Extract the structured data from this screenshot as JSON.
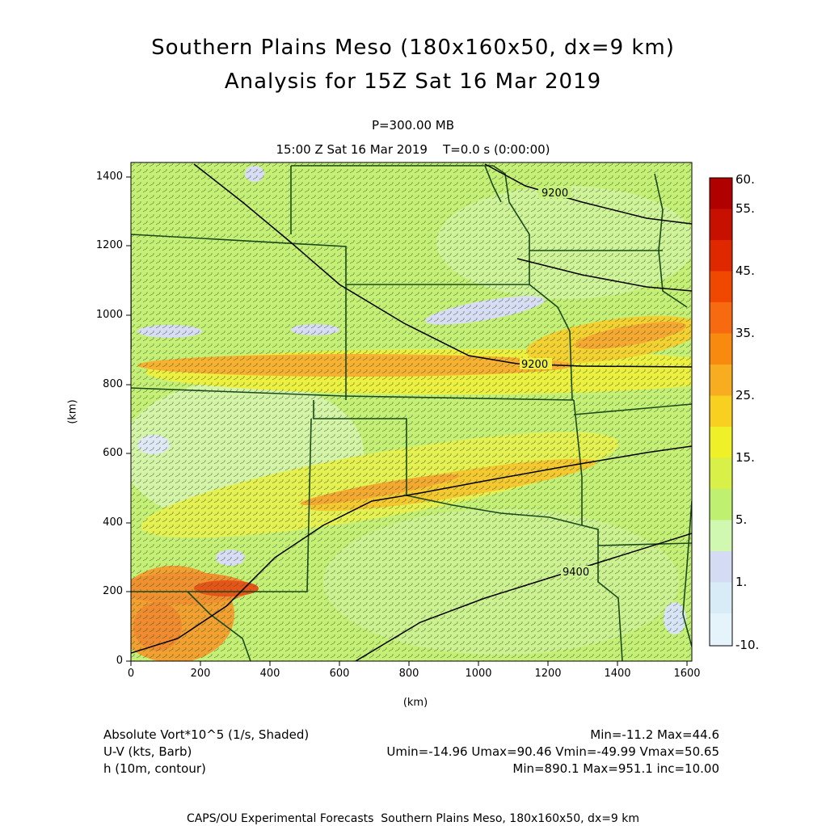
{
  "header": {
    "title_line1": "Southern Plains Meso (180x160x50, dx=9 km)",
    "title_line2": "Analysis for 15Z Sat 16 Mar 2019",
    "level": "P=300.00 MB",
    "time": "15:00 Z Sat 16 Mar 2019    T=0.0 s (0:00:00)"
  },
  "axes": {
    "x_label": "(km)",
    "y_label": "(km)",
    "x_ticks": [
      "0",
      "200",
      "400",
      "600",
      "800",
      "1000",
      "1200",
      "1400",
      "1600"
    ],
    "y_ticks": [
      "0",
      "200",
      "400",
      "600",
      "800",
      "1000",
      "1200",
      "1400"
    ]
  },
  "colorbar": {
    "labels": [
      "60.",
      "55.",
      "45.",
      "35.",
      "25.",
      "15.",
      "5.",
      "1.",
      "-10."
    ],
    "colors": [
      "#b00000",
      "#c81000",
      "#e02800",
      "#f04800",
      "#f86a10",
      "#f88a10",
      "#f8ac20",
      "#f8d020",
      "#f0f028",
      "#d8f048",
      "#c0f070",
      "#d0f8b0",
      "#d4dcf4",
      "#d8ecf8",
      "#e4f4fa"
    ]
  },
  "contours": {
    "labels": [
      "9200",
      "9200",
      "9400"
    ]
  },
  "legend": {
    "var1_name": "Absolute Vort*10^5 (1/s, Shaded)",
    "var1_stats": "Min=-11.2 Max=44.6",
    "var2_name": "U-V (kts, Barb)",
    "var2_stats": "Umin=-14.96 Umax=90.46 Vmin=-49.99 Vmax=50.65",
    "var3_name": "h (10m, contour)",
    "var3_stats": "Min=890.1 Max=951.1 inc=10.00"
  },
  "footer": "CAPS/OU Experimental Forecasts  Southern Plains Meso, 180x160x50, dx=9 km"
}
